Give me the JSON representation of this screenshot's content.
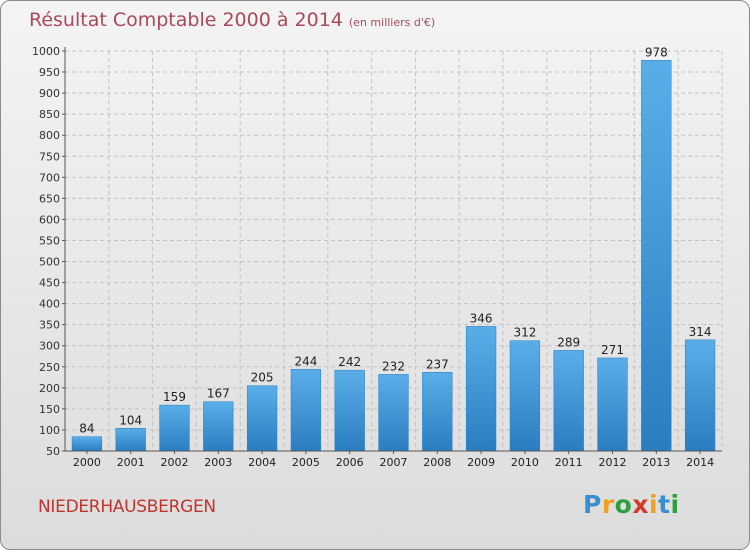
{
  "chart_data": {
    "type": "bar",
    "title": "Résultat Comptable 2000 à 2014",
    "subtitle": "(en milliers d'€)",
    "categories": [
      "2000",
      "2001",
      "2002",
      "2003",
      "2004",
      "2005",
      "2006",
      "2007",
      "2008",
      "2009",
      "2010",
      "2011",
      "2012",
      "2013",
      "2014"
    ],
    "values": [
      84,
      104,
      159,
      167,
      205,
      244,
      242,
      232,
      237,
      346,
      312,
      289,
      271,
      978,
      314
    ],
    "ylim": [
      50,
      1000
    ],
    "yticks": [
      50,
      100,
      150,
      200,
      250,
      300,
      350,
      400,
      450,
      500,
      550,
      600,
      650,
      700,
      750,
      800,
      850,
      900,
      950,
      1000
    ],
    "grid": true,
    "bar_color": "#3d95d6"
  },
  "commune_name": "NIEDERHAUSBERGEN",
  "logo": {
    "letters": [
      "P",
      "r",
      "o",
      "x",
      "i",
      "t",
      "i"
    ],
    "colors": [
      "#3a8fd0",
      "#f0a020",
      "#2e9e3e",
      "#d63a2a",
      "#f0a020",
      "#3a8fd0",
      "#2e9e3e"
    ]
  }
}
